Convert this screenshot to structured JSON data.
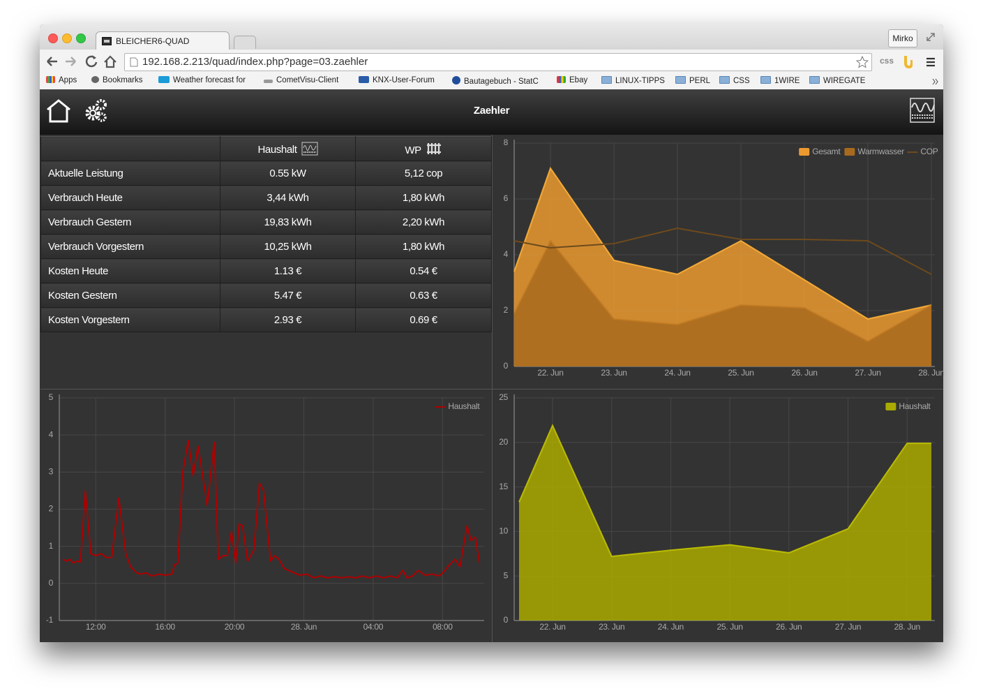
{
  "browser": {
    "tab_title": "BLEICHER6-QUAD",
    "user": "Mirko",
    "url": "192.168.2.213/quad/index.php?page=03.zaehler",
    "extension": "css",
    "bookmarks": [
      "Apps",
      "Bookmarks",
      "Weather forecast for",
      "CometVisu-Client",
      "KNX-User-Forum",
      "Bautagebuch - StatC",
      "Ebay",
      "LINUX-TIPPS",
      "PERL",
      "CSS",
      "1WIRE",
      "WIREGATE"
    ]
  },
  "header": {
    "title": "Zaehler"
  },
  "table": {
    "columns": [
      "Haushalt",
      "WP"
    ],
    "rows": [
      [
        "Aktuelle Leistung",
        "0.55 kW",
        "5,12 cop"
      ],
      [
        "Verbrauch Heute",
        "3,44 kWh",
        "1,80 kWh"
      ],
      [
        "Verbrauch Gestern",
        "19,83 kWh",
        "2,20 kWh"
      ],
      [
        "Verbrauch Vorgestern",
        "10,25 kWh",
        "1,80 kWh"
      ],
      [
        "Kosten Heute",
        "1.13 €",
        "0.54 €"
      ],
      [
        "Kosten Gestern",
        "5.47 €",
        "0.63 €"
      ],
      [
        "Kosten Vorgestern",
        "2.93 €",
        "0.69 €"
      ]
    ]
  },
  "chart_data": [
    {
      "type": "area",
      "categories": [
        null,
        "22. Jun",
        "23. Jun",
        "24. Jun",
        "25. Jun",
        "26. Jun",
        "27. Jun",
        "28. Jun"
      ],
      "series": [
        {
          "name": "Gesamt",
          "color": "#eb9a30",
          "values": [
            3.4,
            7.1,
            3.8,
            3.3,
            4.5,
            3.1,
            1.7,
            2.2
          ]
        },
        {
          "name": "Warmwasser",
          "color": "#a86a1e",
          "values": [
            1.9,
            4.5,
            1.7,
            1.5,
            2.2,
            2.1,
            0.9,
            2.2
          ]
        },
        {
          "name": "COP",
          "color": "#6e4a1c",
          "type": "line",
          "values": [
            4.5,
            4.25,
            4.4,
            4.95,
            4.55,
            4.55,
            4.5,
            3.3
          ]
        }
      ],
      "ylim": [
        0,
        8
      ],
      "yticks": [
        0,
        2,
        4,
        6,
        8
      ],
      "grid": true,
      "legend": "upper right"
    },
    {
      "type": "line",
      "x": [
        10.11,
        10.31,
        10.51,
        10.71,
        10.92,
        11.12,
        11.4,
        11.72,
        12.0,
        12.32,
        12.6,
        12.92,
        13.33,
        13.73,
        14.01,
        14.33,
        14.53,
        14.93,
        15.25,
        15.65,
        16.0,
        16.38,
        16.54,
        16.74,
        17.02,
        17.34,
        17.62,
        17.9,
        18.43,
        18.83,
        19.07,
        19.35,
        19.59,
        19.83,
        20.07,
        20.27,
        20.47,
        20.76,
        21.12,
        21.44,
        21.68,
        22.08,
        22.32,
        22.56,
        22.88,
        23.37,
        23.77,
        24.17,
        24.57,
        24.97,
        25.37,
        25.78,
        26.18,
        26.58,
        26.98,
        27.38,
        27.78,
        28.18,
        28.59,
        28.99,
        29.39,
        29.71,
        29.95,
        30.27,
        30.59,
        31.0,
        31.4,
        31.8,
        32.04,
        32.4,
        32.72,
        33.0,
        33.41,
        33.65,
        33.89,
        34.13
      ],
      "series": [
        {
          "name": "Haushalt",
          "color": "#b00000",
          "values": [
            0.65,
            0.6,
            0.65,
            0.55,
            0.6,
            0.58,
            2.5,
            0.8,
            0.75,
            0.8,
            0.7,
            0.7,
            2.3,
            0.8,
            0.45,
            0.3,
            0.25,
            0.28,
            0.2,
            0.25,
            0.22,
            0.25,
            0.5,
            0.55,
            3.0,
            3.85,
            2.9,
            3.7,
            2.1,
            3.8,
            0.65,
            0.75,
            0.75,
            1.4,
            0.55,
            1.6,
            1.55,
            0.6,
            0.9,
            2.7,
            2.5,
            0.6,
            0.75,
            0.65,
            0.4,
            0.3,
            0.22,
            0.25,
            0.15,
            0.2,
            0.15,
            0.18,
            0.15,
            0.18,
            0.15,
            0.2,
            0.15,
            0.2,
            0.15,
            0.2,
            0.15,
            0.35,
            0.15,
            0.2,
            0.35,
            0.22,
            0.25,
            0.2,
            0.3,
            0.5,
            0.65,
            0.45,
            1.55,
            1.15,
            1.25,
            0.55
          ]
        }
      ],
      "xlim": [
        9.9,
        34.4
      ],
      "xticks": [
        {
          "value": 12,
          "label": "12:00"
        },
        {
          "value": 16,
          "label": "16:00"
        },
        {
          "value": 20,
          "label": "20:00"
        },
        {
          "value": 24,
          "label": "28. Jun"
        },
        {
          "value": 28,
          "label": "04:00"
        },
        {
          "value": 32,
          "label": "08:00"
        }
      ],
      "ylim": [
        -1,
        5
      ],
      "yticks": [
        -1,
        0,
        1,
        2,
        3,
        4,
        5
      ],
      "grid": true,
      "legend": "upper right"
    },
    {
      "type": "area",
      "categories": [
        null,
        "22. Jun",
        "23. Jun",
        "24. Jun",
        "25. Jun",
        "26. Jun",
        "27. Jun",
        "28. Jun",
        null
      ],
      "series": [
        {
          "name": "Haushalt",
          "color": "#aaaa00",
          "values": [
            13.3,
            21.9,
            7.2,
            7.9,
            8.5,
            7.6,
            10.3,
            19.9,
            19.9
          ]
        }
      ],
      "ylim": [
        0,
        25
      ],
      "yticks": [
        0,
        5,
        10,
        15,
        20,
        25
      ],
      "grid": true,
      "legend": "upper right"
    }
  ]
}
